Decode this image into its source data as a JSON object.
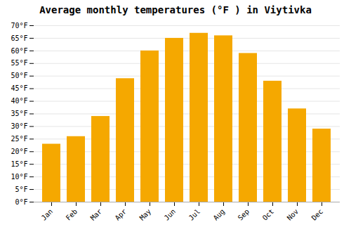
{
  "chart_data": {
    "type": "bar",
    "title": "Average monthly temperatures (°F ) in Viytivka",
    "categories": [
      "Jan",
      "Feb",
      "Mar",
      "Apr",
      "May",
      "Jun",
      "Jul",
      "Aug",
      "Sep",
      "Oct",
      "Nov",
      "Dec"
    ],
    "values": [
      23,
      26,
      34,
      49,
      60,
      65,
      67,
      66,
      59,
      48,
      37,
      29
    ],
    "color": "#F5A800",
    "ylim": [
      0,
      70
    ],
    "yticks": [
      {
        "value": 0,
        "label": "0°F"
      },
      {
        "value": 5,
        "label": "5°F"
      },
      {
        "value": 10,
        "label": "10°F"
      },
      {
        "value": 15,
        "label": "15°F"
      },
      {
        "value": 20,
        "label": "20°F"
      },
      {
        "value": 25,
        "label": "25°F"
      },
      {
        "value": 30,
        "label": "30°F"
      },
      {
        "value": 35,
        "label": "35°F"
      },
      {
        "value": 40,
        "label": "40°F"
      },
      {
        "value": 45,
        "label": "45°F"
      },
      {
        "value": 50,
        "label": "50°F"
      },
      {
        "value": 55,
        "label": "55°F"
      },
      {
        "value": 60,
        "label": "60°F"
      },
      {
        "value": 65,
        "label": "65°F"
      },
      {
        "value": 70,
        "label": "70°F"
      }
    ],
    "grid": true
  }
}
